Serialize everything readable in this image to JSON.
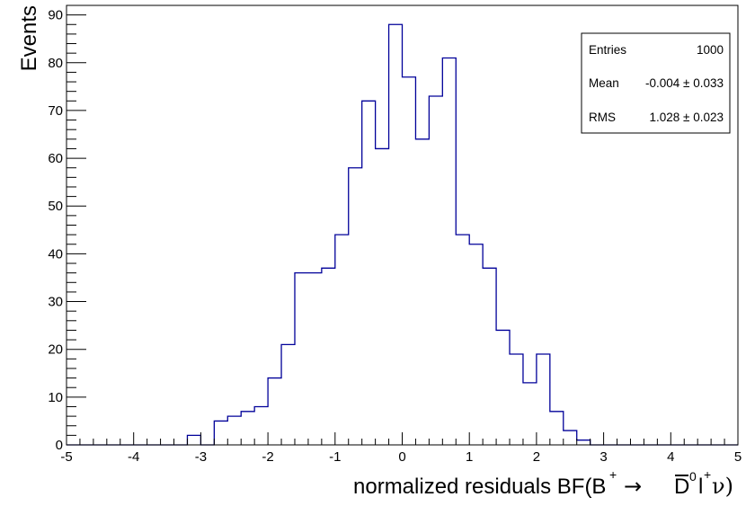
{
  "chart_data": {
    "type": "bar",
    "histogram": true,
    "xlabel": "normalized residuals BF(B",
    "xlabel_tail": "l",
    "ylabel": "Events",
    "xlim": [
      -5,
      5
    ],
    "ylim": [
      0,
      92
    ],
    "x_ticks": [
      "-5",
      "-4",
      "-3",
      "-2",
      "-1",
      "0",
      "1",
      "2",
      "3",
      "4",
      "5"
    ],
    "y_ticks": [
      "0",
      "10",
      "20",
      "30",
      "40",
      "50",
      "60",
      "70",
      "80",
      "90"
    ],
    "bin_edges_start": -5,
    "bin_width": 0.2,
    "values": [
      0,
      0,
      0,
      0,
      0,
      0,
      0,
      0,
      0,
      2,
      0,
      5,
      6,
      7,
      8,
      14,
      21,
      36,
      36,
      37,
      44,
      58,
      72,
      62,
      88,
      77,
      64,
      73,
      81,
      44,
      42,
      37,
      24,
      19,
      13,
      19,
      7,
      3,
      1,
      0,
      0,
      0,
      0,
      0,
      0,
      0,
      0,
      0,
      0,
      0
    ],
    "line_color": "#000099",
    "grid": false,
    "legend": "none"
  },
  "stats": {
    "entries_label": "Entries",
    "entries_value": "1000",
    "mean_label": "Mean",
    "mean_value": "-0.004 ± 0.033",
    "rms_label": "RMS",
    "rms_value": "1.028 ± 0.023"
  }
}
